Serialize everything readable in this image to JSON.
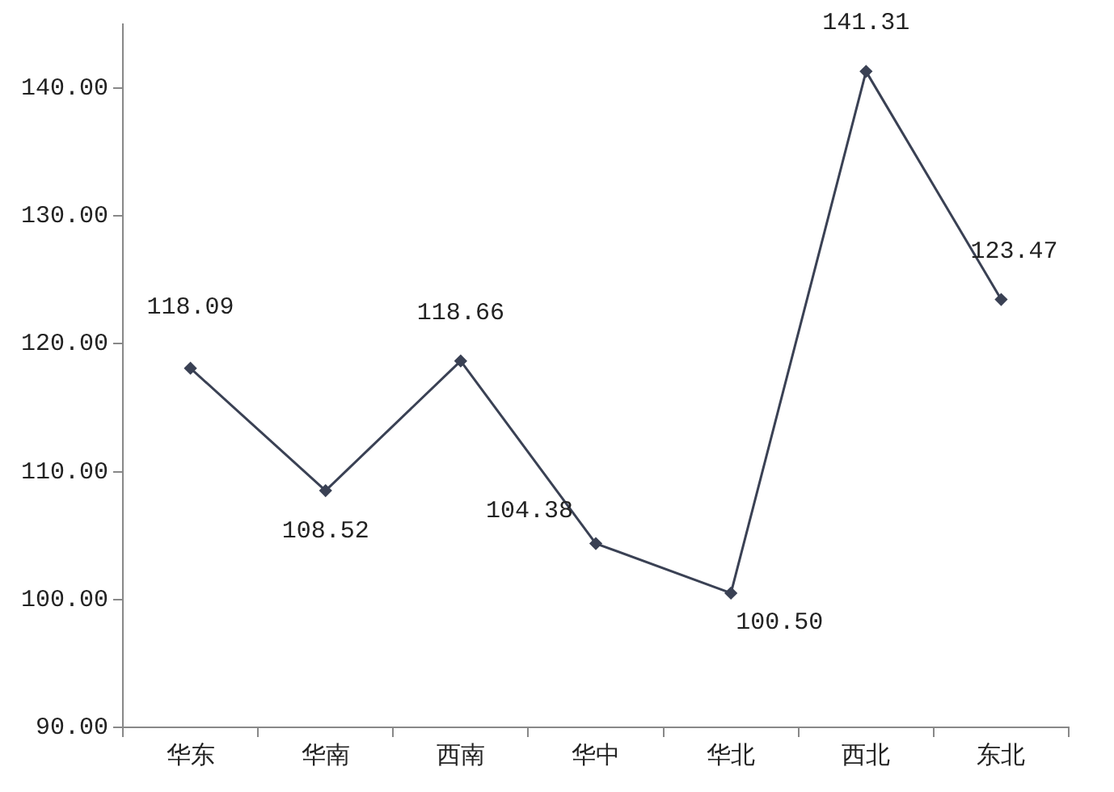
{
  "chart_data": {
    "type": "line",
    "categories": [
      "华东",
      "华南",
      "西南",
      "华中",
      "华北",
      "西北",
      "东北"
    ],
    "series": [
      {
        "color": "#3a4154",
        "values": [
          118.09,
          108.52,
          118.66,
          104.38,
          100.5,
          141.31,
          123.47
        ],
        "value_labels": [
          "118.09",
          "108.52",
          "118.66",
          "104.38",
          "100.50",
          "141.31",
          "123.47"
        ]
      }
    ],
    "ylim": [
      90,
      145
    ],
    "yticks": [
      {
        "value": 90,
        "label": "90.00"
      },
      {
        "value": 100,
        "label": "100.00"
      },
      {
        "value": 110,
        "label": "110.00"
      },
      {
        "value": 120,
        "label": "120.00"
      },
      {
        "value": 130,
        "label": "130.00"
      },
      {
        "value": 140,
        "label": "140.00"
      }
    ],
    "marker": "diamond",
    "line_style": "solid",
    "grid": false,
    "legend": false
  }
}
